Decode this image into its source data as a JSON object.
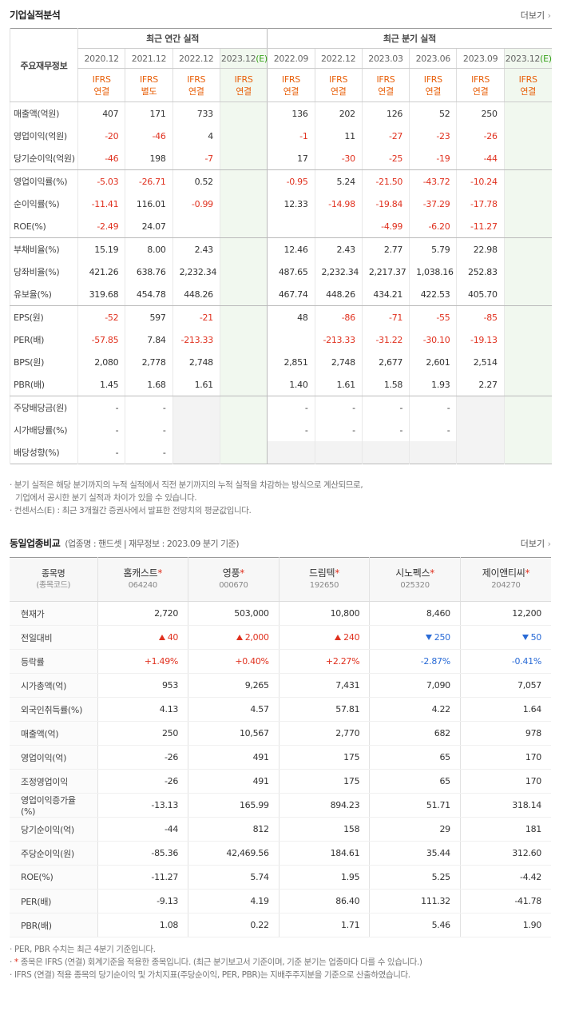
{
  "section1": {
    "title": "기업실적분석",
    "more": "더보기",
    "row_header": "주요재무정보",
    "group_annual": "최근 연간 실적",
    "group_quarter": "최근 분기 실적",
    "columns": [
      {
        "period": "2020.12",
        "basis": [
          "IFRS",
          "연결"
        ]
      },
      {
        "period": "2021.12",
        "basis": [
          "IFRS",
          "별도"
        ]
      },
      {
        "period": "2022.12",
        "basis": [
          "IFRS",
          "연결"
        ]
      },
      {
        "period": "2023.12",
        "mark": "(E)",
        "basis": [
          "IFRS",
          "연결"
        ],
        "estimate": true
      },
      {
        "period": "2022.09",
        "basis": [
          "IFRS",
          "연결"
        ]
      },
      {
        "period": "2022.12",
        "basis": [
          "IFRS",
          "연결"
        ]
      },
      {
        "period": "2023.03",
        "basis": [
          "IFRS",
          "연결"
        ]
      },
      {
        "period": "2023.06",
        "basis": [
          "IFRS",
          "연결"
        ]
      },
      {
        "period": "2023.09",
        "basis": [
          "IFRS",
          "연결"
        ]
      },
      {
        "period": "2023.12",
        "mark": "(E)",
        "basis": [
          "IFRS",
          "연결"
        ],
        "estimate": true
      }
    ],
    "rows": [
      {
        "label": "매출액(억원)",
        "values": [
          "407",
          "171",
          "733",
          null,
          "136",
          "202",
          "126",
          "52",
          "250",
          null
        ]
      },
      {
        "label": "영업이익(억원)",
        "values": [
          "-20",
          "-46",
          "4",
          null,
          "-1",
          "11",
          "-27",
          "-23",
          "-26",
          null
        ]
      },
      {
        "label": "당기순이익(억원)",
        "values": [
          "-46",
          "198",
          "-7",
          null,
          "17",
          "-30",
          "-25",
          "-19",
          "-44",
          null
        ]
      },
      {
        "label": "영업이익률(%)",
        "values": [
          "-5.03",
          "-26.71",
          "0.52",
          null,
          "-0.95",
          "5.24",
          "-21.50",
          "-43.72",
          "-10.24",
          null
        ]
      },
      {
        "label": "순이익률(%)",
        "values": [
          "-11.41",
          "116.01",
          "-0.99",
          null,
          "12.33",
          "-14.98",
          "-19.84",
          "-37.29",
          "-17.78",
          null
        ]
      },
      {
        "label": "ROE(%)",
        "values": [
          "-2.49",
          "24.07",
          null,
          null,
          null,
          null,
          "-4.99",
          "-6.20",
          "-11.27",
          null
        ]
      },
      {
        "label": "부채비율(%)",
        "values": [
          "15.19",
          "8.00",
          "2.43",
          null,
          "12.46",
          "2.43",
          "2.77",
          "5.79",
          "22.98",
          null
        ]
      },
      {
        "label": "당좌비율(%)",
        "values": [
          "421.26",
          "638.76",
          "2,232.34",
          null,
          "487.65",
          "2,232.34",
          "2,217.37",
          "1,038.16",
          "252.83",
          null
        ]
      },
      {
        "label": "유보율(%)",
        "values": [
          "319.68",
          "454.78",
          "448.26",
          null,
          "467.74",
          "448.26",
          "434.21",
          "422.53",
          "405.70",
          null
        ]
      },
      {
        "label": "EPS(원)",
        "values": [
          "-52",
          "597",
          "-21",
          null,
          "48",
          "-86",
          "-71",
          "-55",
          "-85",
          null
        ]
      },
      {
        "label": "PER(배)",
        "values": [
          "-57.85",
          "7.84",
          "-213.33",
          null,
          null,
          "-213.33",
          "-31.22",
          "-30.10",
          "-19.13",
          null
        ]
      },
      {
        "label": "BPS(원)",
        "values": [
          "2,080",
          "2,778",
          "2,748",
          null,
          "2,851",
          "2,748",
          "2,677",
          "2,601",
          "2,514",
          null
        ]
      },
      {
        "label": "PBR(배)",
        "values": [
          "1.45",
          "1.68",
          "1.61",
          null,
          "1.40",
          "1.61",
          "1.58",
          "1.93",
          "2.27",
          null
        ]
      },
      {
        "label": "주당배당금(원)",
        "values": [
          "-",
          "-",
          null,
          null,
          "-",
          "-",
          "-",
          "-",
          null,
          null
        ],
        "shaded": [
          2,
          8
        ]
      },
      {
        "label": "시가배당률(%)",
        "values": [
          "-",
          "-",
          null,
          null,
          "-",
          "-",
          "-",
          "-",
          null,
          null
        ],
        "shaded": [
          2,
          8
        ]
      },
      {
        "label": "배당성향(%)",
        "values": [
          "-",
          "-",
          null,
          null,
          null,
          null,
          null,
          null,
          null,
          null
        ],
        "shaded": [
          2,
          4,
          5,
          6,
          7,
          8
        ]
      }
    ],
    "notes": [
      "분기 실적은 해당 분기까지의 누적 실적에서 직전 분기까지의 누적 실적을 차감하는 방식으로 계산되므로,",
      "기업에서 공시한 분기 실적과 차이가 있을 수 있습니다.",
      "컨센서스(E) : 최근 3개월간 증권사에서 발표한 전망치의 평균값입니다."
    ]
  },
  "section2": {
    "title": "동일업종비교",
    "subtitle": "(업종명 : 핸드셋 | 재무정보 : 2023.09 분기 기준)",
    "more": "더보기",
    "name_header": "종목명",
    "code_header": "(종목코드)",
    "ifrs_mark": "*",
    "companies": [
      {
        "name": "홈캐스트",
        "code": "064240"
      },
      {
        "name": "영풍",
        "code": "000670"
      },
      {
        "name": "드림텍",
        "code": "192650"
      },
      {
        "name": "시노펙스",
        "code": "025320"
      },
      {
        "name": "제이앤티씨",
        "code": "204270"
      }
    ],
    "rows": [
      {
        "label": "현재가",
        "values": [
          "2,720",
          "503,000",
          "10,800",
          "8,460",
          "12,200"
        ]
      },
      {
        "label": "전일대비",
        "values": [
          "40",
          "2,000",
          "240",
          "250",
          "50"
        ],
        "directions": [
          "up",
          "up",
          "up",
          "down",
          "down"
        ]
      },
      {
        "label": "등락률",
        "values": [
          "+1.49%",
          "+0.40%",
          "+2.27%",
          "-2.87%",
          "-0.41%"
        ],
        "tone": "sign"
      },
      {
        "label": "시가총액(억)",
        "values": [
          "953",
          "9,265",
          "7,431",
          "7,090",
          "7,057"
        ]
      },
      {
        "label": "외국인취득률(%)",
        "values": [
          "4.13",
          "4.57",
          "57.81",
          "4.22",
          "1.64"
        ]
      },
      {
        "label": "매출액(억)",
        "values": [
          "250",
          "10,567",
          "2,770",
          "682",
          "978"
        ]
      },
      {
        "label": "영업이익(억)",
        "values": [
          "-26",
          "491",
          "175",
          "65",
          "170"
        ]
      },
      {
        "label": "조정영업이익",
        "values": [
          "-26",
          "491",
          "175",
          "65",
          "170"
        ]
      },
      {
        "label": "영업이익증가율(%)",
        "values": [
          "-13.13",
          "165.99",
          "894.23",
          "51.71",
          "318.14"
        ]
      },
      {
        "label": "당기순이익(억)",
        "values": [
          "-44",
          "812",
          "158",
          "29",
          "181"
        ]
      },
      {
        "label": "주당순이익(원)",
        "values": [
          "-85.36",
          "42,469.56",
          "184.61",
          "35.44",
          "312.60"
        ]
      },
      {
        "label": "ROE(%)",
        "values": [
          "-11.27",
          "5.74",
          "1.95",
          "5.25",
          "-4.42"
        ]
      },
      {
        "label": "PER(배)",
        "values": [
          "-9.13",
          "4.19",
          "86.40",
          "111.32",
          "-41.78"
        ]
      },
      {
        "label": "PBR(배)",
        "values": [
          "1.08",
          "0.22",
          "1.71",
          "5.46",
          "1.90"
        ]
      }
    ],
    "notes": [
      {
        "text": "PER, PBR 수치는 최근 4분기 기준입니다."
      },
      {
        "mark": "*",
        "text": " 종목은 IFRS (연결) 회계기준을 적용한 종목입니다. (최근 분기보고서 기준이며, 기준 분기는 업종마다 다를 수 있습니다.)"
      },
      {
        "text": "IFRS (연결) 적용 종목의 당기순이익 및 가치지표(주당순이익, PER, PBR)는 지배주주지분을 기준으로 산출하였습니다."
      }
    ]
  }
}
